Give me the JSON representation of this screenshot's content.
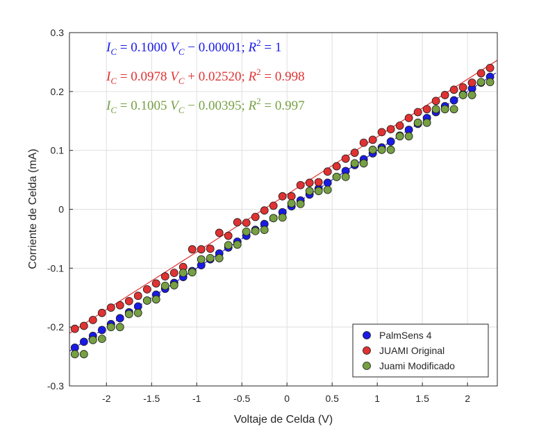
{
  "chart_data": {
    "type": "scatter",
    "xlabel": "Voltaje de Celda (V)",
    "ylabel": "Corriente de Celda (mA)",
    "xlim": [
      -2.41,
      2.33
    ],
    "ylim": [
      -0.3,
      0.3
    ],
    "xticks": [
      -2,
      -1.5,
      -1,
      -0.5,
      0,
      0.5,
      1,
      1.5,
      2
    ],
    "yticks": [
      -0.3,
      -0.2,
      -0.1,
      0,
      0.1,
      0.2,
      0.3
    ],
    "grid": true,
    "legend": "lower right",
    "x": [
      -2.35,
      -2.25,
      -2.15,
      -2.05,
      -1.95,
      -1.85,
      -1.75,
      -1.65,
      -1.55,
      -1.45,
      -1.35,
      -1.25,
      -1.15,
      -1.05,
      -0.95,
      -0.85,
      -0.75,
      -0.65,
      -0.55,
      -0.45,
      -0.35,
      -0.25,
      -0.15,
      -0.05,
      0.05,
      0.15,
      0.25,
      0.35,
      0.45,
      0.55,
      0.65,
      0.75,
      0.85,
      0.95,
      1.05,
      1.15,
      1.25,
      1.35,
      1.45,
      1.55,
      1.65,
      1.75,
      1.85,
      1.95,
      2.05,
      2.15,
      2.25
    ],
    "series": [
      {
        "name": "PalmSens 4",
        "color": "#1a1ae6",
        "values": [
          -0.235,
          -0.225,
          -0.215,
          -0.205,
          -0.195,
          -0.185,
          -0.175,
          -0.165,
          -0.155,
          -0.145,
          -0.135,
          -0.125,
          -0.115,
          -0.105,
          -0.095,
          -0.085,
          -0.075,
          -0.065,
          -0.055,
          -0.045,
          -0.035,
          -0.025,
          -0.015,
          -0.005,
          0.005,
          0.015,
          0.025,
          0.035,
          0.045,
          0.055,
          0.065,
          0.075,
          0.085,
          0.095,
          0.105,
          0.115,
          0.125,
          0.135,
          0.145,
          0.155,
          0.165,
          0.175,
          0.185,
          0.195,
          0.205,
          0.215,
          0.225
        ]
      },
      {
        "name": "JUAMI Original",
        "color": "#e03232",
        "values": [
          -0.203,
          -0.198,
          -0.188,
          -0.176,
          -0.167,
          -0.163,
          -0.156,
          -0.147,
          -0.136,
          -0.126,
          -0.114,
          -0.108,
          -0.098,
          -0.068,
          -0.068,
          -0.067,
          -0.04,
          -0.045,
          -0.022,
          -0.023,
          -0.013,
          -0.002,
          0.006,
          0.022,
          0.022,
          0.041,
          0.045,
          0.046,
          0.064,
          0.073,
          0.086,
          0.096,
          0.113,
          0.118,
          0.131,
          0.136,
          0.142,
          0.155,
          0.165,
          0.17,
          0.184,
          0.194,
          0.203,
          0.207,
          0.215,
          0.231,
          0.24
        ]
      },
      {
        "name": "Juami Modificado",
        "color": "#76a043",
        "values": [
          -0.246,
          -0.246,
          -0.222,
          -0.22,
          -0.2,
          -0.2,
          -0.178,
          -0.176,
          -0.155,
          -0.153,
          -0.13,
          -0.129,
          -0.108,
          -0.107,
          -0.085,
          -0.083,
          -0.083,
          -0.061,
          -0.06,
          -0.038,
          -0.037,
          -0.035,
          -0.015,
          -0.014,
          0.01,
          0.009,
          0.031,
          0.031,
          0.033,
          0.055,
          0.055,
          0.078,
          0.078,
          0.101,
          0.101,
          0.101,
          0.124,
          0.124,
          0.147,
          0.147,
          0.17,
          0.17,
          0.17,
          0.194,
          0.194,
          0.216,
          0.216
        ]
      }
    ],
    "fits": [
      {
        "color": "#1a1ae6",
        "line": "dashed",
        "current_symbol": "I",
        "subscript": "C",
        "voltage_symbol": "V",
        "slope": {
          "value": 0.1,
          "label": "0.1000"
        },
        "op": "−",
        "intercept": {
          "value": -1e-05,
          "label": "0.00001"
        },
        "r2_symbol": "R",
        "r2_text": "; ",
        "r2": 1
      },
      {
        "color": "#e03232",
        "line": "solid",
        "current_symbol": "I",
        "subscript": "C",
        "voltage_symbol": "V",
        "slope": {
          "value": 0.0978,
          "label": "0.0978"
        },
        "op": "+",
        "intercept": {
          "value": 0.0252,
          "label": "0.02520"
        },
        "r2_symbol": "R",
        "r2_text": "; ",
        "r2": 0.998
      },
      {
        "color": "#76a043",
        "line": "none",
        "current_symbol": "I",
        "subscript": "C",
        "voltage_symbol": "V",
        "slope": {
          "value": 0.1005,
          "label": "0.1005"
        },
        "op": "−",
        "intercept": {
          "value": -0.00395,
          "label": "0.00395"
        },
        "r2_symbol": "R",
        "r2_text": "; ",
        "r2": 0.997
      }
    ]
  }
}
